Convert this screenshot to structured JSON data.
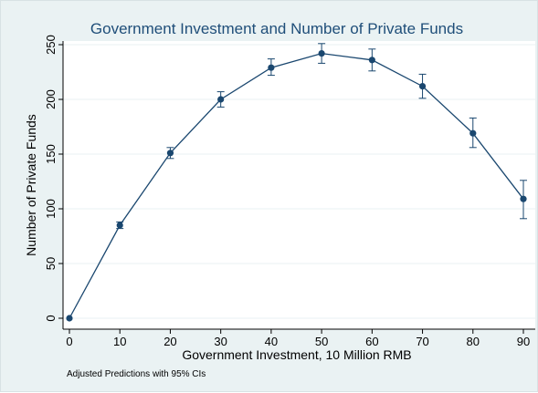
{
  "chart_data": {
    "type": "line",
    "title": "Government Investment and Number of Private Funds",
    "xlabel": "Government Investment, 10 Million RMB",
    "ylabel": "Number of Private Funds",
    "note": "Adjusted Predictions with 95% CIs",
    "xlim": [
      0,
      90
    ],
    "ylim": [
      0,
      250
    ],
    "xticks": [
      0,
      10,
      20,
      30,
      40,
      50,
      60,
      70,
      80,
      90
    ],
    "yticks": [
      0,
      50,
      100,
      150,
      200,
      250
    ],
    "grid": true,
    "legend": "none",
    "series": [
      {
        "x": [
          0,
          10,
          20,
          30,
          40,
          50,
          60,
          70,
          80,
          90
        ],
        "y": [
          0,
          85,
          151,
          200,
          229,
          242,
          236,
          212,
          169,
          109
        ],
        "ci_low": [
          0,
          82,
          146,
          193,
          222,
          233,
          226,
          201,
          156,
          91
        ],
        "ci_high": [
          0,
          88,
          156,
          207,
          237,
          251,
          246,
          223,
          183,
          126
        ]
      }
    ],
    "colors": {
      "background": "#eaf2f3",
      "plot_background": "#ffffff",
      "line": "#1a476f",
      "title": "#1f4e79",
      "grid": "#eaf2f3"
    }
  }
}
